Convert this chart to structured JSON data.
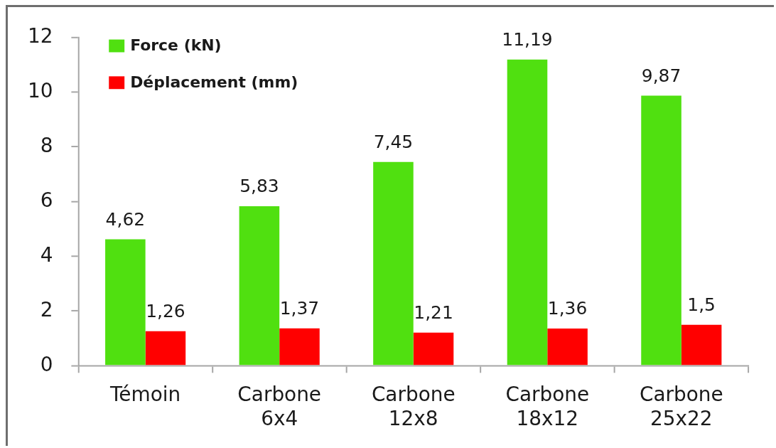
{
  "chart_data": {
    "type": "bar",
    "categories": [
      "Témoin",
      "Carbone 6x4",
      "Carbone 12x8",
      "Carbone 18x12",
      "Carbone 25x22"
    ],
    "series": [
      {
        "name": "Force (kN)",
        "color": "#50e010",
        "values": [
          4.62,
          5.83,
          7.45,
          11.19,
          9.87
        ],
        "value_labels": [
          "4,62",
          "5,83",
          "7,45",
          "11,19",
          "9,87"
        ]
      },
      {
        "name": "Déplacement (mm)",
        "color": "#ff0000",
        "values": [
          1.26,
          1.37,
          1.21,
          1.36,
          1.5
        ],
        "value_labels": [
          "1,26",
          "1,37",
          "1,21",
          "1,36",
          "1,5"
        ]
      }
    ],
    "ylim": [
      0,
      12
    ],
    "yticks": [
      0,
      2,
      4,
      6,
      8,
      10,
      12
    ],
    "grid": false,
    "legend": "top left"
  }
}
